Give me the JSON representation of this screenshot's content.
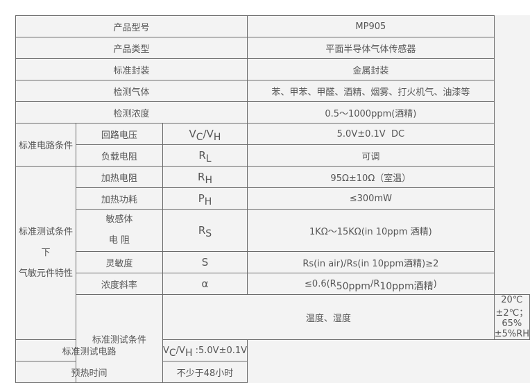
{
  "rows": {
    "model": {
      "label": "产品型号",
      "value": "MP905"
    },
    "type": {
      "label": "产品类型",
      "value": "平面半导体气体传感器"
    },
    "package": {
      "label": "标准封装",
      "value": "金属封装"
    },
    "gas": {
      "label": "检测气体",
      "value": "苯、甲苯、甲醛、酒精、烟雾、打火机气、油漆等"
    },
    "concentration": {
      "label": "检测浓度",
      "value": "0.5～1000ppm(酒精)"
    }
  },
  "circuit": {
    "group": "标准电路条件",
    "loop_voltage": {
      "label": "回路电压",
      "sym": [
        "V",
        "C",
        "/V",
        "H"
      ],
      "value": "5.0V±0.1V  DC"
    },
    "load_resistance": {
      "label": "负载电阻",
      "sym": [
        "R",
        "L"
      ],
      "value": "可调"
    }
  },
  "characteristics": {
    "group": [
      "标准测试条件下",
      "气敏元件特性"
    ],
    "heater_resistance": {
      "label": "加热电阻",
      "sym": [
        "R",
        "H"
      ],
      "value": "95Ω±10Ω（室温）"
    },
    "heater_power": {
      "label": "加热功耗",
      "sym": [
        "P",
        "H"
      ],
      "value": "≤300mW"
    },
    "sensing_resistance": {
      "label": [
        "敏感体",
        "电 阻"
      ],
      "sym": [
        "R",
        "S"
      ],
      "value": "1KΩ～15KΩ(in 10ppm 酒精)"
    },
    "sensitivity": {
      "label": "灵敏度",
      "sym": "S",
      "value": "Rs(in air)/Rs(in 10ppm酒精)≥2"
    },
    "slope": {
      "label": "浓度斜率",
      "sym": "α",
      "value": [
        "≤0.6(R",
        "50ppm",
        "/R",
        "10ppm酒精",
        ")"
      ]
    }
  },
  "test": {
    "group": "标准测试条件",
    "temp_humidity": {
      "label": "温度、湿度",
      "value": "20℃±2℃；65%±5%RH"
    },
    "test_circuit": {
      "label": "标准测试电路",
      "value": [
        "V",
        "C",
        "/V",
        "H",
        " :5.0V±0.1V"
      ]
    },
    "preheat": {
      "label": "预热时间",
      "value": "不少于48小时"
    }
  }
}
